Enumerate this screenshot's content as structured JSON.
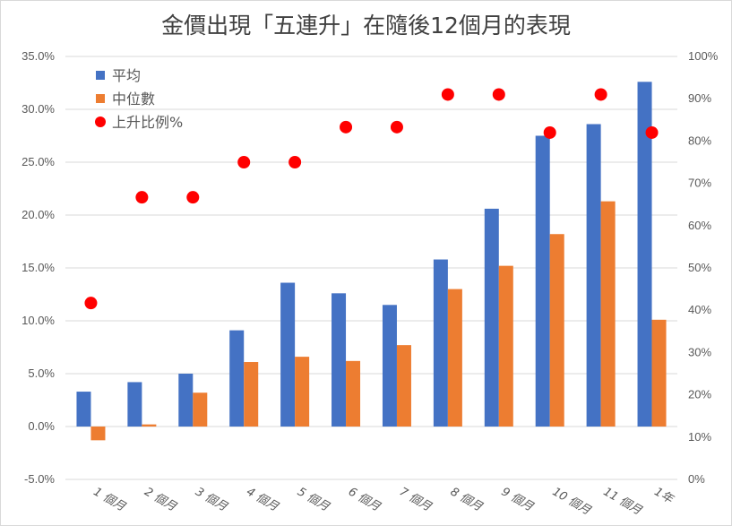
{
  "chart_data": {
    "type": "bar",
    "title": "金價出現「五連升」在隨後12個月的表現",
    "categories": [
      "1 個月",
      "2 個月",
      "3 個月",
      "4 個月",
      "5 個月",
      "6 個月",
      "7 個月",
      "8 個月",
      "9 個月",
      "10 個月",
      "11 個月",
      "1年"
    ],
    "series": [
      {
        "name": "平均",
        "type": "bar",
        "axis": "left",
        "color": "#4472C4",
        "values": [
          3.3,
          4.2,
          5.0,
          9.1,
          13.6,
          12.6,
          11.5,
          15.8,
          20.6,
          27.5,
          28.6,
          32.6
        ]
      },
      {
        "name": "中位數",
        "type": "bar",
        "axis": "left",
        "color": "#ED7D31",
        "values": [
          -1.3,
          0.2,
          3.2,
          6.1,
          6.6,
          6.2,
          7.7,
          13.0,
          15.2,
          18.2,
          21.3,
          10.1
        ]
      },
      {
        "name": "上升比例%",
        "type": "scatter",
        "axis": "right",
        "color": "#FF0000",
        "values": [
          41.7,
          66.7,
          66.7,
          75.0,
          75.0,
          83.3,
          83.3,
          91.0,
          91.0,
          82.0,
          91.0,
          82.0
        ]
      }
    ],
    "left_axis": {
      "ylim": [
        -5,
        35
      ],
      "ticks": [
        "-5.0%",
        "0.0%",
        "5.0%",
        "10.0%",
        "15.0%",
        "20.0%",
        "25.0%",
        "30.0%",
        "35.0%"
      ]
    },
    "right_axis": {
      "ylim": [
        0,
        100
      ],
      "ticks": [
        "0%",
        "10%",
        "20%",
        "30%",
        "40%",
        "50%",
        "60%",
        "70%",
        "80%",
        "90%",
        "100%"
      ]
    },
    "grid": true,
    "legend_position": "top-left"
  }
}
